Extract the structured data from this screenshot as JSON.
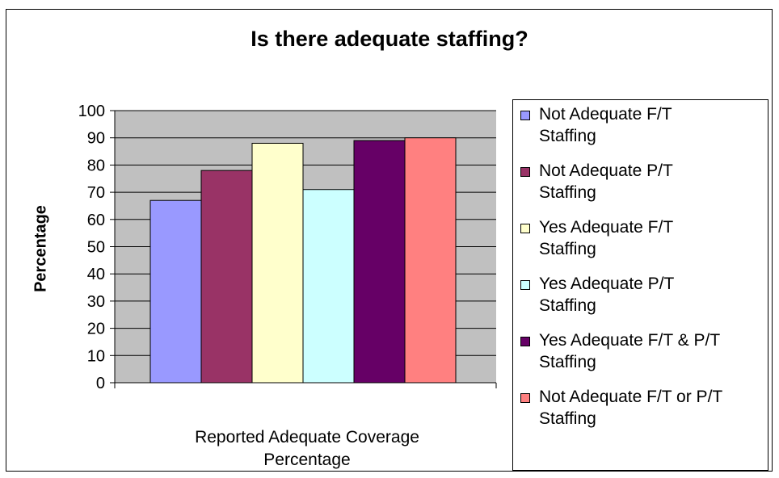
{
  "chart_data": {
    "type": "bar",
    "title": "Is there adequate staffing?",
    "ylabel": "Percentage",
    "xlabel_lines": [
      "Reported Adequate Coverage",
      "Percentage"
    ],
    "ylim": [
      0,
      100
    ],
    "yticks": [
      "0",
      "10",
      "20",
      "30",
      "40",
      "50",
      "60",
      "70",
      "80",
      "90",
      "100"
    ],
    "grid": true,
    "legend_position": "right",
    "series": [
      {
        "name": "Not Adequate F/T Staffing",
        "name_lines": [
          "Not Adequate F/T",
          "Staffing"
        ],
        "value": 67,
        "color": "#9999ff"
      },
      {
        "name": "Not Adequate P/T Staffing",
        "name_lines": [
          "Not Adequate P/T",
          "Staffing"
        ],
        "value": 78,
        "color": "#993366"
      },
      {
        "name": "Yes Adequate F/T Staffing",
        "name_lines": [
          "Yes Adequate F/T",
          "Staffing"
        ],
        "value": 88,
        "color": "#ffffcc"
      },
      {
        "name": "Yes Adequate P/T Staffing",
        "name_lines": [
          "Yes Adequate P/T",
          "Staffing"
        ],
        "value": 71,
        "color": "#ccffff"
      },
      {
        "name": "Yes Adequate F/T & P/T Staffing",
        "name_lines": [
          "Yes Adequate F/T & P/T",
          "Staffing"
        ],
        "value": 89,
        "color": "#660066"
      },
      {
        "name": "Not Adequate F/T or P/T Staffing",
        "name_lines": [
          "Not Adequate F/T or P/T",
          "Staffing"
        ],
        "value": 90,
        "color": "#ff8080"
      }
    ],
    "plot_background": "#c0c0c0"
  }
}
